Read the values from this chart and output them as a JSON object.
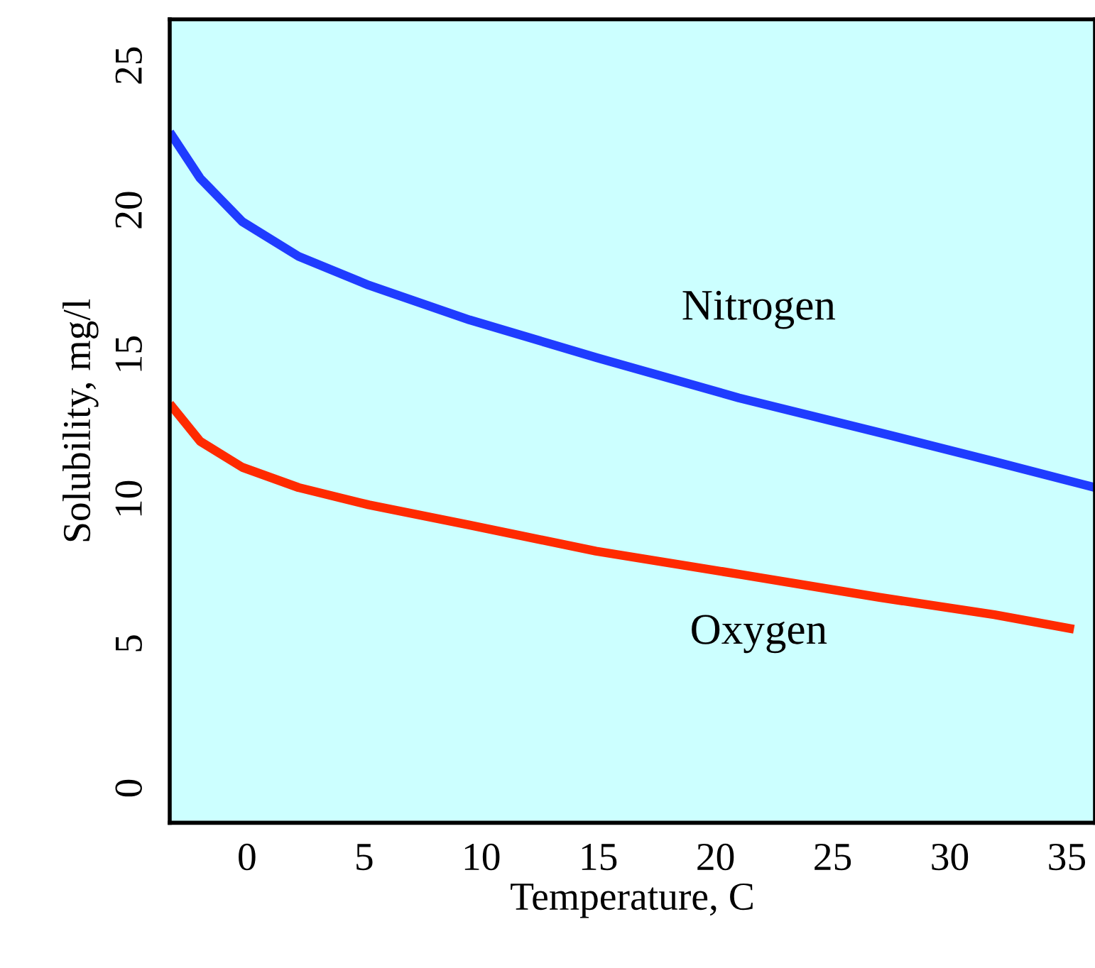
{
  "chart_data": {
    "type": "line",
    "xlabel": "Temperature, C",
    "ylabel": "Solubility, mg/l",
    "xlim": [
      -3.3,
      36.2
    ],
    "ylim": [
      -1.2,
      26.6
    ],
    "xticks": [
      0,
      5,
      10,
      15,
      20,
      25,
      30,
      35
    ],
    "yticks": [
      0,
      5,
      10,
      15,
      20,
      25
    ],
    "grid": false,
    "legend": false,
    "marker": "none",
    "line_style": "solid",
    "series": [
      {
        "name": "Nitrogen",
        "color": "#1f3cff",
        "x": [
          -3.3,
          -2.0,
          -0.2,
          2.2,
          5.2,
          9.5,
          14.9,
          21.0,
          27.0,
          31.9,
          36.2
        ],
        "values": [
          22.7,
          21.1,
          19.6,
          18.4,
          17.4,
          16.2,
          14.9,
          13.5,
          12.3,
          11.3,
          10.4
        ]
      },
      {
        "name": "Oxygen",
        "color": "#ff2a00",
        "x": [
          -3.3,
          -2.0,
          -0.2,
          2.2,
          5.2,
          9.5,
          14.9,
          21.0,
          27.0,
          31.9,
          35.3
        ],
        "values": [
          13.3,
          12.0,
          11.1,
          10.4,
          9.8,
          9.1,
          8.2,
          7.4,
          6.6,
          6.0,
          5.5
        ]
      }
    ]
  }
}
